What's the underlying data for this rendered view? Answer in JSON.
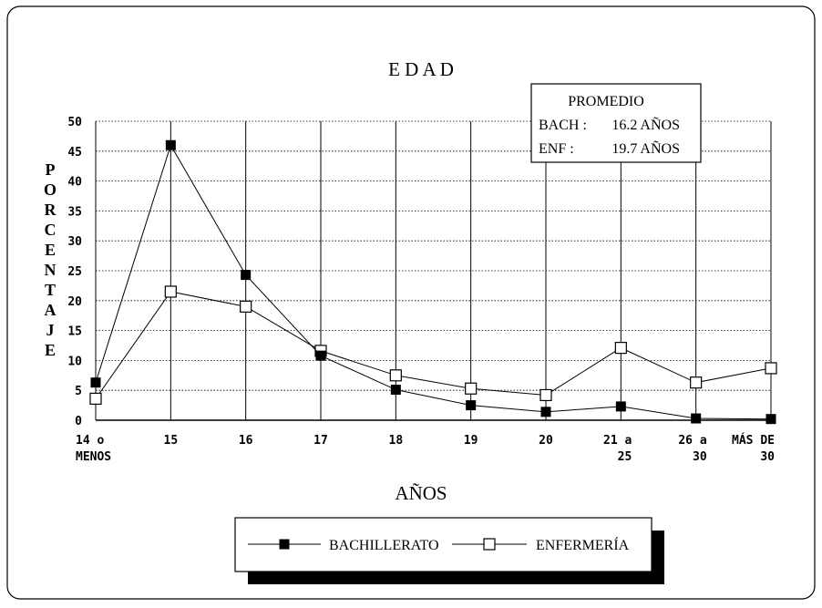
{
  "chart_data": {
    "type": "line",
    "title": "E D A D",
    "xlabel": "AÑOS",
    "ylabel": [
      "P",
      "O",
      "R",
      "C",
      "E",
      "N",
      "T",
      "A",
      "J",
      "E"
    ],
    "ylim": [
      0,
      50
    ],
    "yticks": [
      0,
      5,
      10,
      15,
      20,
      25,
      30,
      35,
      40,
      45,
      50
    ],
    "grid": true,
    "categories": [
      [
        "14 o",
        "MENOS"
      ],
      [
        "15"
      ],
      [
        "16"
      ],
      [
        "17"
      ],
      [
        "18"
      ],
      [
        "19"
      ],
      [
        "20"
      ],
      [
        "21 a",
        "25"
      ],
      [
        "26 a",
        "30"
      ],
      [
        "MÁS DE",
        "30"
      ]
    ],
    "series": [
      {
        "name": "BACHILLERATO",
        "marker": "filled-square",
        "color": "#000000",
        "values": [
          6.3,
          46.0,
          24.3,
          10.8,
          5.1,
          2.5,
          1.4,
          2.3,
          0.3,
          0.2
        ]
      },
      {
        "name": "ENFERMERÍA",
        "marker": "open-square",
        "color": "#000000",
        "values": [
          3.6,
          21.5,
          19.0,
          11.6,
          7.5,
          5.3,
          4.2,
          12.1,
          6.3,
          8.7
        ]
      }
    ],
    "legend_placement": "bottom-center",
    "annotation": {
      "title": "PROMEDIO",
      "rows": [
        {
          "label": "BACH :",
          "value": "16.2 AÑOS"
        },
        {
          "label": "ENF :",
          "value": "19.7 AÑOS"
        }
      ]
    }
  }
}
